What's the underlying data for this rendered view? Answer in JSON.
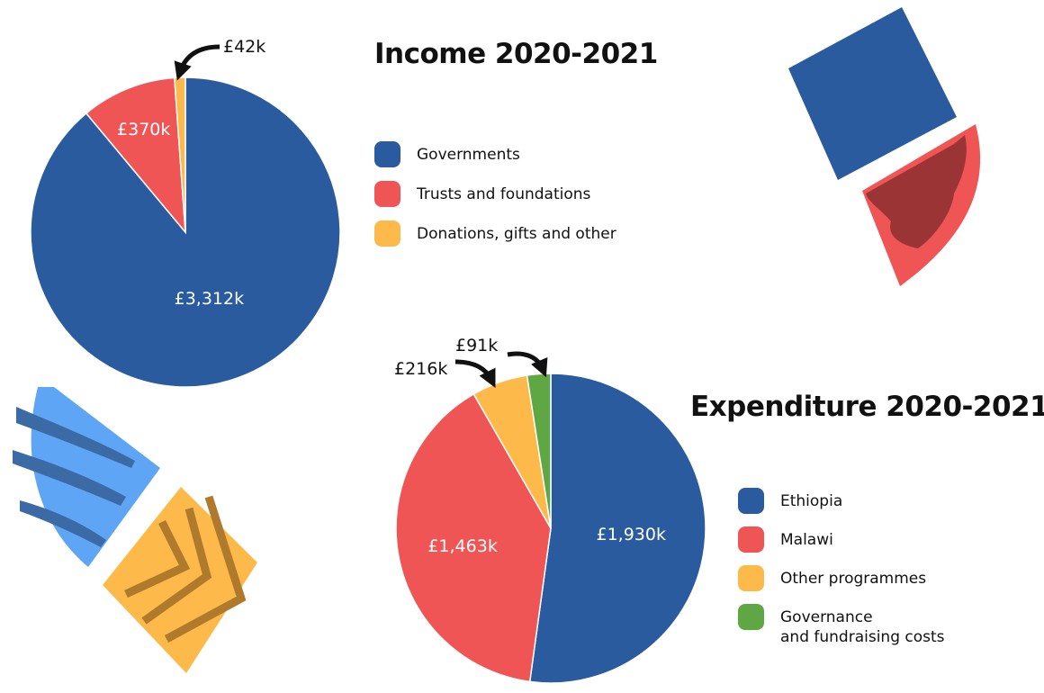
{
  "colors": {
    "blue": "#2a5b9e",
    "red": "#f05555",
    "yellow": "#fdb94a",
    "green": "#5fa744",
    "dark_red": "#9b3535",
    "light_blue": "#5ea5f5",
    "stripe_blue": "#3b6aa4",
    "stripe_brown": "#b07a2d",
    "text": "#111111"
  },
  "chart_data": [
    {
      "type": "pie",
      "title": "Income 2020-2021",
      "slices": [
        {
          "label": "Governments",
          "value": 3312,
          "display": "£3,312k",
          "color": "#2a5b9e"
        },
        {
          "label": "Trusts and foundations",
          "value": 370,
          "display": "£370k",
          "color": "#f05555"
        },
        {
          "label": "Donations, gifts and other",
          "value": 42,
          "display": "£42k",
          "color": "#fdb94a"
        }
      ],
      "legend_position": "right"
    },
    {
      "type": "pie",
      "title": "Expenditure 2020-2021",
      "slices": [
        {
          "label": "Ethiopia",
          "value": 1930,
          "display": "£1,930k",
          "color": "#2a5b9e"
        },
        {
          "label": "Malawi",
          "value": 1463,
          "display": "£1,463k",
          "color": "#f05555"
        },
        {
          "label": "Other programmes",
          "value": 216,
          "display": "£216k",
          "color": "#fdb94a"
        },
        {
          "label": "Governance and fundraising costs",
          "label_lines": [
            "Governance",
            "and fundraising costs"
          ],
          "value": 91,
          "display": "£91k",
          "color": "#5fa744"
        }
      ],
      "legend_position": "right"
    }
  ],
  "decorations": [
    "diamond-icon",
    "map-icon",
    "fish-icon",
    "chevron-pattern-icon"
  ]
}
